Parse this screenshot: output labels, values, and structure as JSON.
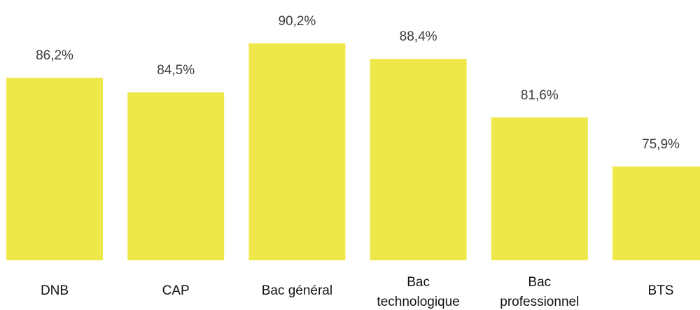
{
  "chart_data": {
    "type": "bar",
    "categories": [
      "DNB",
      "CAP",
      "Bac général",
      "Bac technologique",
      "Bac professionnel",
      "BTS"
    ],
    "category_lines": [
      [
        "DNB"
      ],
      [
        "CAP"
      ],
      [
        "Bac général"
      ],
      [
        "Bac",
        "technologique"
      ],
      [
        "Bac",
        "professionnel"
      ],
      [
        "BTS"
      ]
    ],
    "values": [
      86.2,
      84.5,
      90.2,
      88.4,
      81.6,
      75.9
    ],
    "value_labels": [
      "86,2%",
      "84,5%",
      "90,2%",
      "88,4%",
      "81,6%",
      "75,9%"
    ],
    "title": "",
    "xlabel": "",
    "ylabel": "",
    "ylim": [
      65,
      90.2
    ],
    "grid": false,
    "legend": "none",
    "bar_color": "#efe84a"
  }
}
